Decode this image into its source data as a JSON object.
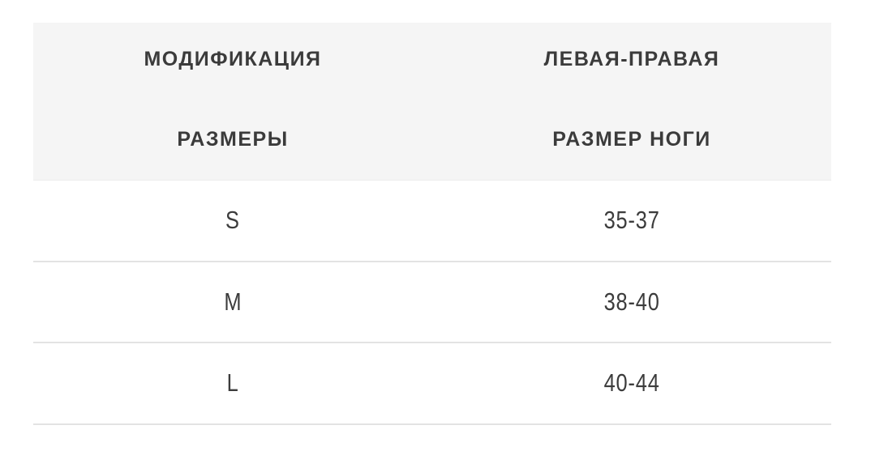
{
  "table": {
    "columns": [
      {
        "line1": "МОДИФИКАЦИЯ",
        "line2": "РАЗМЕРЫ"
      },
      {
        "line1": "ЛЕВАЯ-ПРАВАЯ",
        "line2": "РАЗМЕР НОГИ"
      }
    ],
    "rows": [
      {
        "modification": "S",
        "foot_size": "35-37"
      },
      {
        "modification": "M",
        "foot_size": "38-40"
      },
      {
        "modification": "L",
        "foot_size": "40-44"
      }
    ]
  },
  "colors": {
    "page_bg": "#ffffff",
    "header_bg": "#f5f5f5",
    "divider": "#e3e3e3",
    "header_text": "#3b3b3b",
    "body_text": "#3c3c3c"
  }
}
